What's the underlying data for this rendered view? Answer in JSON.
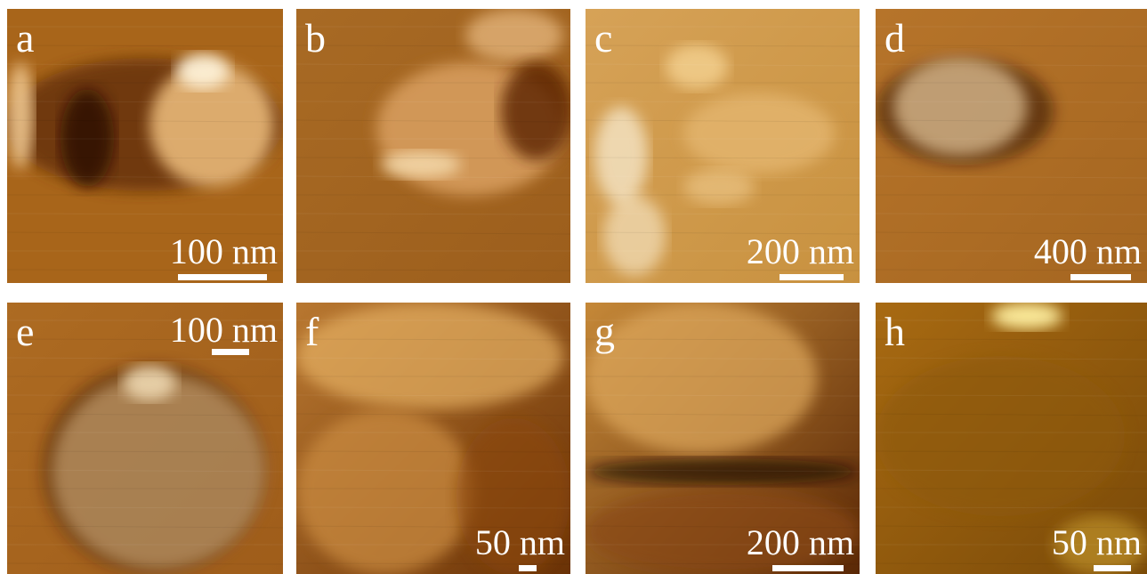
{
  "panels": [
    {
      "label": "a",
      "scale_bar": "100 nm"
    },
    {
      "label": "b"
    },
    {
      "label": "c",
      "scale_bar": "200 nm"
    },
    {
      "label": "d",
      "scale_bar": "400 nm"
    },
    {
      "label": "e",
      "scale_bar": "100 nm"
    },
    {
      "label": "f",
      "scale_bar": "50 nm"
    },
    {
      "label": "g",
      "scale_bar": "200 nm"
    },
    {
      "label": "h",
      "scale_bar": "50 nm"
    }
  ]
}
